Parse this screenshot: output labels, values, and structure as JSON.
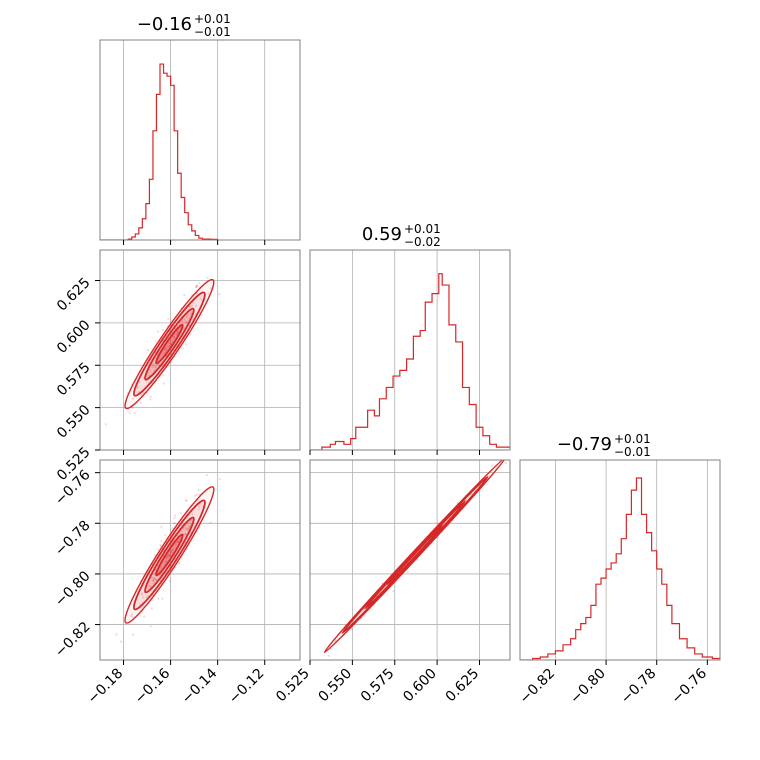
{
  "colors": {
    "series": "#d62728",
    "grid": "#b0b0b0",
    "frame": "#808080"
  },
  "chart_data": {
    "type": "corner",
    "parameters": [
      {
        "title": {
          "main": "−0.16",
          "sup": "+0.01",
          "sub": "−0.01"
        },
        "range": [
          -0.19,
          -0.105
        ],
        "ticks": [
          -0.18,
          -0.16,
          -0.14,
          -0.12
        ],
        "tick_labels": [
          "−0.18",
          "−0.16",
          "−0.14",
          "−0.12"
        ]
      },
      {
        "title": {
          "main": "0.59",
          "sup": "+0.01",
          "sub": "−0.02"
        },
        "range": [
          0.525,
          0.643
        ],
        "ticks": [
          0.525,
          0.55,
          0.575,
          0.6,
          0.625
        ],
        "tick_labels": [
          "0.525",
          "0.550",
          "0.575",
          "0.600",
          "0.625"
        ]
      },
      {
        "title": {
          "main": "−0.79",
          "sup": "+0.01",
          "sub": "−0.01"
        },
        "range": [
          -0.834,
          -0.755
        ],
        "ticks": [
          -0.82,
          -0.8,
          -0.78,
          -0.76
        ],
        "tick_labels": [
          "−0.82",
          "−0.80",
          "−0.78",
          "−0.76"
        ]
      }
    ],
    "histograms": [
      {
        "param": 0,
        "ymax": 60,
        "bins": [
          [
            -0.19,
            0
          ],
          [
            -0.178,
            0.3
          ],
          [
            -0.1765,
            1
          ],
          [
            -0.175,
            2
          ],
          [
            -0.1735,
            4
          ],
          [
            -0.172,
            7
          ],
          [
            -0.1705,
            12
          ],
          [
            -0.169,
            20
          ],
          [
            -0.1675,
            36
          ],
          [
            -0.166,
            48
          ],
          [
            -0.1645,
            58
          ],
          [
            -0.163,
            55
          ],
          [
            -0.1615,
            54
          ],
          [
            -0.16,
            51
          ],
          [
            -0.1585,
            36
          ],
          [
            -0.157,
            22
          ],
          [
            -0.1555,
            14
          ],
          [
            -0.154,
            9
          ],
          [
            -0.1525,
            5
          ],
          [
            -0.151,
            3
          ],
          [
            -0.1495,
            1.5
          ],
          [
            -0.148,
            0.6
          ],
          [
            -0.1465,
            0.3
          ],
          [
            -0.143,
            0.2
          ],
          [
            -0.14,
            0
          ]
        ]
      },
      {
        "param": 1,
        "ymax": 64,
        "bins": [
          [
            0.525,
            0
          ],
          [
            0.532,
            1
          ],
          [
            0.537,
            2
          ],
          [
            0.54,
            3
          ],
          [
            0.545,
            2
          ],
          [
            0.549,
            4
          ],
          [
            0.552,
            8
          ],
          [
            0.556,
            8
          ],
          [
            0.559,
            14
          ],
          [
            0.563,
            12
          ],
          [
            0.566,
            18
          ],
          [
            0.57,
            22
          ],
          [
            0.574,
            26
          ],
          [
            0.578,
            28
          ],
          [
            0.582,
            32
          ],
          [
            0.586,
            40
          ],
          [
            0.59,
            42
          ],
          [
            0.593,
            52
          ],
          [
            0.597,
            55
          ],
          [
            0.601,
            62
          ],
          [
            0.603,
            58
          ],
          [
            0.607,
            44
          ],
          [
            0.611,
            38
          ],
          [
            0.615,
            22
          ],
          [
            0.619,
            16
          ],
          [
            0.623,
            8
          ],
          [
            0.627,
            5
          ],
          [
            0.631,
            2
          ],
          [
            0.635,
            1
          ],
          [
            0.643,
            0
          ]
        ]
      },
      {
        "param": 2,
        "ymax": 60,
        "bins": [
          [
            -0.834,
            0
          ],
          [
            -0.829,
            0.5
          ],
          [
            -0.826,
            1
          ],
          [
            -0.823,
            2
          ],
          [
            -0.82,
            3
          ],
          [
            -0.817,
            5
          ],
          [
            -0.814,
            7
          ],
          [
            -0.812,
            10
          ],
          [
            -0.81,
            12
          ],
          [
            -0.808,
            14
          ],
          [
            -0.806,
            18
          ],
          [
            -0.804,
            25
          ],
          [
            -0.802,
            27
          ],
          [
            -0.8,
            30
          ],
          [
            -0.798,
            32
          ],
          [
            -0.796,
            35
          ],
          [
            -0.794,
            40
          ],
          [
            -0.792,
            48
          ],
          [
            -0.79,
            56
          ],
          [
            -0.788,
            60
          ],
          [
            -0.786,
            48
          ],
          [
            -0.784,
            42
          ],
          [
            -0.782,
            36
          ],
          [
            -0.78,
            30
          ],
          [
            -0.778,
            25
          ],
          [
            -0.776,
            18
          ],
          [
            -0.774,
            12
          ],
          [
            -0.771,
            7
          ],
          [
            -0.768,
            4
          ],
          [
            -0.765,
            2
          ],
          [
            -0.762,
            1
          ],
          [
            -0.758,
            0.5
          ],
          [
            -0.755,
            0
          ]
        ]
      }
    ],
    "pairs": [
      {
        "x": 0,
        "y": 1,
        "center": [
          -0.1605,
          0.5875
        ],
        "slope": 2.05,
        "extent": [
          -0.179,
          -0.142
        ],
        "width": 0.005
      },
      {
        "x": 0,
        "y": 2,
        "center": [
          -0.1605,
          -0.7925
        ],
        "slope": 1.45,
        "extent": [
          -0.179,
          -0.142
        ],
        "width": 0.0035
      },
      {
        "x": 1,
        "y": 2,
        "center": [
          0.587,
          -0.7925
        ],
        "slope": 0.72,
        "extent": [
          0.533,
          0.64
        ],
        "width": 0.0009
      }
    ]
  }
}
